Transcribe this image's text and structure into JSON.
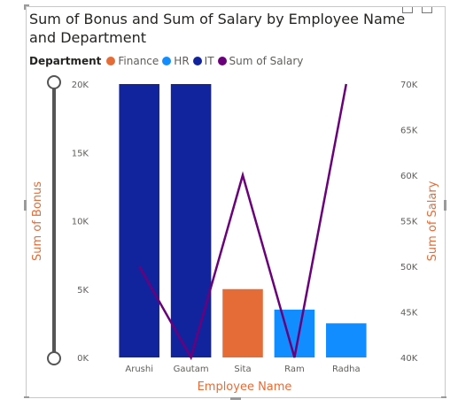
{
  "title": "Sum of Bonus and Sum of Salary by Employee Name and Department",
  "legend": {
    "title": "Department",
    "items": [
      {
        "label": "Finance",
        "color": "#e66c37"
      },
      {
        "label": "HR",
        "color": "#118dff"
      },
      {
        "label": "IT",
        "color": "#12239e"
      },
      {
        "label": "Sum of Salary",
        "color": "#6b007b"
      }
    ]
  },
  "chart_data": {
    "type": "bar",
    "title": "Sum of Bonus and Sum of Salary by Employee Name and Department",
    "xlabel": "Employee Name",
    "ylabel": "Sum of Bonus",
    "y2label": "Sum of Salary",
    "categories": [
      "Arushi",
      "Gautam",
      "Sita",
      "Ram",
      "Radha"
    ],
    "departments": [
      "IT",
      "IT",
      "Finance",
      "HR",
      "HR"
    ],
    "department_colors": {
      "Finance": "#e66c37",
      "HR": "#118dff",
      "IT": "#12239e"
    },
    "series": [
      {
        "name": "Sum of Bonus",
        "type": "bar",
        "axis": "left",
        "values": [
          20000,
          20000,
          5000,
          3500,
          2500
        ]
      },
      {
        "name": "Sum of Salary",
        "type": "line",
        "axis": "right",
        "color": "#6b007b",
        "values": [
          50000,
          40000,
          60000,
          40000,
          70000
        ]
      }
    ],
    "ylim": [
      0,
      20000
    ],
    "y2lim": [
      40000,
      70000
    ],
    "yticks": [
      0,
      5000,
      10000,
      15000,
      20000
    ],
    "yticklabels": [
      "0K",
      "5K",
      "10K",
      "15K",
      "20K"
    ],
    "y2ticks": [
      40000,
      45000,
      50000,
      55000,
      60000,
      65000,
      70000
    ],
    "y2ticklabels": [
      "40K",
      "45K",
      "50K",
      "55K",
      "60K",
      "65K",
      "70K"
    ],
    "legend_position": "top-left",
    "grid": false
  }
}
